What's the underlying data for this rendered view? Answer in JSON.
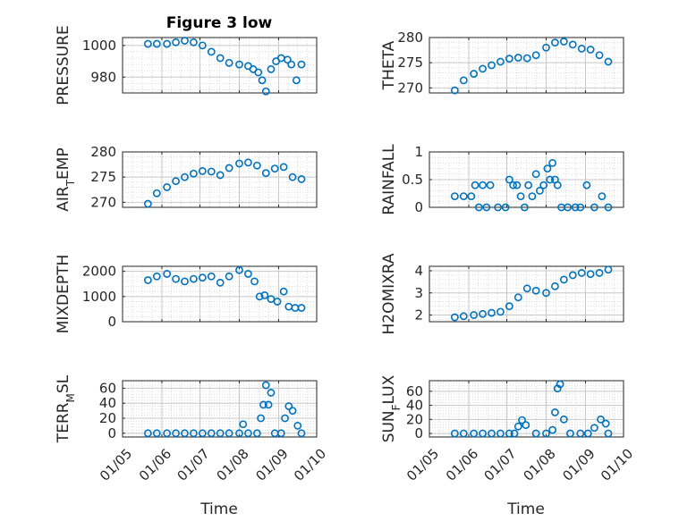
{
  "figure": {
    "title": "Figure 3 low",
    "marker_color": "#0072BD"
  },
  "chart_data": [
    {
      "type": "scatter",
      "ylabel": "PRESSURE",
      "ylim": [
        970,
        1005
      ],
      "yticks": [
        980,
        1000
      ],
      "ytick_labels": [
        "980",
        "1000"
      ],
      "xlim": [
        "2012-05-01",
        "2012-10-01"
      ],
      "grid": true,
      "x": [
        "2012-05-21",
        "2012-05-28",
        "2012-06-05",
        "2012-06-12",
        "2012-06-19",
        "2012-06-26",
        "2012-07-03",
        "2012-07-10",
        "2012-07-17",
        "2012-07-24",
        "2012-08-01",
        "2012-08-08",
        "2012-08-12",
        "2012-08-16",
        "2012-08-19",
        "2012-08-22",
        "2012-08-26",
        "2012-08-30",
        "2012-09-03",
        "2012-09-08",
        "2012-09-11",
        "2012-09-15",
        "2012-09-19"
      ],
      "y": [
        1001,
        1001,
        1001,
        1002,
        1003,
        1002,
        1000,
        996,
        992,
        989,
        988,
        987,
        985,
        983,
        978,
        971,
        985,
        990,
        992,
        991,
        988,
        978,
        988
      ]
    },
    {
      "type": "scatter",
      "ylabel": "THETA",
      "ylim": [
        269,
        280
      ],
      "yticks": [
        270,
        275,
        280
      ],
      "ytick_labels": [
        "270",
        "275",
        "280"
      ],
      "xlim": [
        "2012-05-01",
        "2012-10-01"
      ],
      "grid": true,
      "x": [
        "2012-05-21",
        "2012-05-28",
        "2012-06-05",
        "2012-06-12",
        "2012-06-19",
        "2012-06-26",
        "2012-07-03",
        "2012-07-10",
        "2012-07-17",
        "2012-07-24",
        "2012-08-01",
        "2012-08-08",
        "2012-08-15",
        "2012-08-22",
        "2012-08-29",
        "2012-09-05",
        "2012-09-12",
        "2012-09-19"
      ],
      "y": [
        269.5,
        271.5,
        272.8,
        273.8,
        274.5,
        275.2,
        275.8,
        276,
        275.9,
        276.5,
        278,
        279,
        279.2,
        278.6,
        277.8,
        277.6,
        276.5,
        275.2
      ]
    },
    {
      "type": "scatter",
      "ylabel": "AIR_TEMP",
      "ylim": [
        269,
        280
      ],
      "yticks": [
        270,
        275,
        280
      ],
      "ytick_labels": [
        "270",
        "275",
        "280"
      ],
      "xlim": [
        "2012-05-01",
        "2012-10-01"
      ],
      "grid": true,
      "x": [
        "2012-05-21",
        "2012-05-28",
        "2012-06-05",
        "2012-06-12",
        "2012-06-19",
        "2012-06-26",
        "2012-07-03",
        "2012-07-10",
        "2012-07-17",
        "2012-07-24",
        "2012-08-01",
        "2012-08-08",
        "2012-08-15",
        "2012-08-22",
        "2012-08-29",
        "2012-09-05",
        "2012-09-12",
        "2012-09-19"
      ],
      "y": [
        269.7,
        271.8,
        273,
        274.2,
        275,
        275.7,
        276.2,
        276.1,
        275.4,
        276.8,
        277.7,
        277.9,
        277.3,
        275.8,
        276.7,
        277,
        275,
        274.6
      ]
    },
    {
      "type": "scatter",
      "ylabel": "RAINFALL",
      "ylim": [
        0,
        1
      ],
      "yticks": [
        0,
        0.5,
        1
      ],
      "ytick_labels": [
        "0",
        "0.5",
        "1"
      ],
      "xlim": [
        "2012-05-01",
        "2012-10-01"
      ],
      "grid": true,
      "x": [
        "2012-05-21",
        "2012-05-28",
        "2012-06-03",
        "2012-06-06",
        "2012-06-09",
        "2012-06-12",
        "2012-06-15",
        "2012-06-18",
        "2012-06-24",
        "2012-06-30",
        "2012-07-03",
        "2012-07-06",
        "2012-07-09",
        "2012-07-12",
        "2012-07-15",
        "2012-07-18",
        "2012-07-21",
        "2012-07-24",
        "2012-07-27",
        "2012-07-30",
        "2012-08-02",
        "2012-08-04",
        "2012-08-06",
        "2012-08-08",
        "2012-08-10",
        "2012-08-13",
        "2012-08-18",
        "2012-08-24",
        "2012-08-28",
        "2012-09-02",
        "2012-09-08",
        "2012-09-14",
        "2012-09-19"
      ],
      "y": [
        0.2,
        0.2,
        0.2,
        0.4,
        0,
        0.4,
        0,
        0.4,
        0,
        0,
        0.5,
        0.4,
        0.4,
        0.2,
        0,
        0.4,
        0.2,
        0.6,
        0.3,
        0.4,
        0.7,
        0.5,
        0.8,
        0.5,
        0.4,
        0,
        0,
        0,
        0,
        0.4,
        0,
        0.2,
        0
      ]
    },
    {
      "type": "scatter",
      "ylabel": "MIXDEPTH",
      "ylim": [
        0,
        2200
      ],
      "yticks": [
        0,
        1000,
        2000
      ],
      "ytick_labels": [
        "0",
        "1000",
        "2000"
      ],
      "xlim": [
        "2012-05-01",
        "2012-10-01"
      ],
      "grid": true,
      "x": [
        "2012-05-21",
        "2012-05-28",
        "2012-06-05",
        "2012-06-12",
        "2012-06-19",
        "2012-06-26",
        "2012-07-03",
        "2012-07-10",
        "2012-07-17",
        "2012-07-24",
        "2012-08-01",
        "2012-08-08",
        "2012-08-13",
        "2012-08-17",
        "2012-08-21",
        "2012-08-26",
        "2012-08-31",
        "2012-09-05",
        "2012-09-09",
        "2012-09-14",
        "2012-09-19"
      ],
      "y": [
        1650,
        1800,
        1900,
        1700,
        1600,
        1700,
        1750,
        1800,
        1550,
        1800,
        2050,
        1900,
        1600,
        1000,
        1050,
        900,
        800,
        1200,
        600,
        550,
        550
      ]
    },
    {
      "type": "scatter",
      "ylabel": "H2OMIXRA",
      "ylim": [
        1.7,
        4.2
      ],
      "yticks": [
        2,
        3,
        4
      ],
      "ytick_labels": [
        "2",
        "3",
        "4"
      ],
      "xlim": [
        "2012-05-01",
        "2012-10-01"
      ],
      "grid": true,
      "x": [
        "2012-05-21",
        "2012-05-28",
        "2012-06-05",
        "2012-06-12",
        "2012-06-19",
        "2012-06-26",
        "2012-07-03",
        "2012-07-10",
        "2012-07-17",
        "2012-07-24",
        "2012-08-01",
        "2012-08-08",
        "2012-08-15",
        "2012-08-22",
        "2012-08-29",
        "2012-09-05",
        "2012-09-12",
        "2012-09-19"
      ],
      "y": [
        1.9,
        1.95,
        2,
        2.05,
        2.1,
        2.15,
        2.4,
        2.8,
        3.2,
        3.1,
        3.0,
        3.3,
        3.6,
        3.8,
        3.9,
        3.85,
        3.9,
        4.05
      ]
    },
    {
      "type": "scatter",
      "ylabel": "TERR_MSL",
      "ylim": [
        -5,
        70
      ],
      "yticks": [
        0,
        20,
        40,
        60
      ],
      "ytick_labels": [
        "0",
        "20",
        "40",
        "60"
      ],
      "xlim": [
        "2012-05-01",
        "2012-10-01"
      ],
      "grid": true,
      "x": [
        "2012-05-21",
        "2012-05-28",
        "2012-06-05",
        "2012-06-12",
        "2012-06-19",
        "2012-06-26",
        "2012-07-03",
        "2012-07-10",
        "2012-07-17",
        "2012-07-24",
        "2012-08-01",
        "2012-08-04",
        "2012-08-08",
        "2012-08-15",
        "2012-08-18",
        "2012-08-20",
        "2012-08-22",
        "2012-08-24",
        "2012-08-26",
        "2012-08-29",
        "2012-09-03",
        "2012-09-06",
        "2012-09-09",
        "2012-09-12",
        "2012-09-16",
        "2012-09-19"
      ],
      "y": [
        0,
        0,
        0,
        0,
        0,
        0,
        0,
        0,
        0,
        0,
        0,
        12,
        0,
        0,
        20,
        38,
        64,
        38,
        54,
        0,
        0,
        20,
        36,
        30,
        10,
        0
      ]
    },
    {
      "type": "scatter",
      "ylabel": "SUN_FLUX",
      "ylim": [
        -5,
        75
      ],
      "yticks": [
        0,
        20,
        40,
        60
      ],
      "ytick_labels": [
        "0",
        "20",
        "40",
        "60"
      ],
      "xlim": [
        "2012-05-01",
        "2012-10-01"
      ],
      "grid": true,
      "x": [
        "2012-05-21",
        "2012-05-28",
        "2012-06-05",
        "2012-06-12",
        "2012-06-19",
        "2012-06-26",
        "2012-07-03",
        "2012-07-07",
        "2012-07-10",
        "2012-07-13",
        "2012-07-16",
        "2012-07-24",
        "2012-08-01",
        "2012-08-06",
        "2012-08-08",
        "2012-08-10",
        "2012-08-12",
        "2012-08-15",
        "2012-08-20",
        "2012-08-28",
        "2012-09-03",
        "2012-09-08",
        "2012-09-13",
        "2012-09-17",
        "2012-09-19"
      ],
      "y": [
        0,
        0,
        0,
        0,
        0,
        0,
        0,
        0,
        10,
        19,
        12,
        0,
        0,
        5,
        30,
        64,
        70,
        20,
        0,
        0,
        0,
        8,
        20,
        14,
        0
      ]
    }
  ],
  "x_axis": {
    "tick_dates": [
      "2012-05-01",
      "2012-06-01",
      "2012-07-01",
      "2012-08-01",
      "2012-09-01",
      "2012-10-01"
    ],
    "tick_labels": [
      "01/05",
      "01/06",
      "01/07",
      "01/08",
      "01/09",
      "01/10"
    ],
    "xlabel": "Time"
  }
}
